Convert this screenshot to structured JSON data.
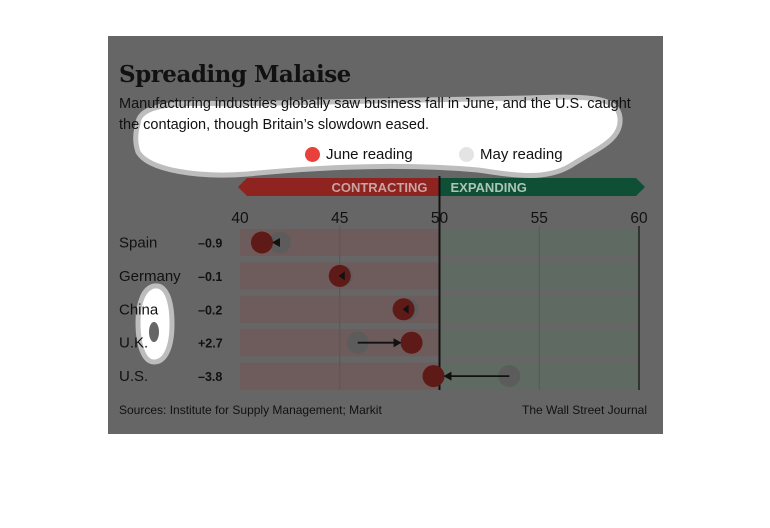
{
  "title": "Spreading Malaise",
  "subtitle": "Manufacturing industries globally saw business fall in June, and the U.S. caught the contagion, though Britain’s slowdown eased.",
  "legend": {
    "june": {
      "label": "June reading",
      "color": "#e8403a"
    },
    "may": {
      "label": "May reading",
      "color": "#e4e4e4"
    }
  },
  "zones": {
    "contracting": "CONTRACTING",
    "expanding": "EXPANDING"
  },
  "footer": {
    "source": "Sources: Institute for Supply Management; Markit",
    "credit": "The Wall Street Journal"
  },
  "colors": {
    "card_background": "#666666",
    "contracting_band": "#8e2320",
    "expanding_band": "#0f4f35",
    "contracting_row": "#6e5b5b",
    "expanding_row": "#5f6a62",
    "arrow": "#111111"
  },
  "chart_data": {
    "type": "dot",
    "title": "Spreading Malaise",
    "x_ticks": [
      40,
      45,
      50,
      55,
      60
    ],
    "xlim": [
      40,
      60
    ],
    "threshold": 50,
    "categories": [
      "Spain",
      "Germany",
      "China",
      "U.K.",
      "U.S."
    ],
    "change_labels": [
      "–0.9",
      "–0.1",
      "–0.2",
      "+2.7",
      "–3.8"
    ],
    "series": [
      {
        "name": "June reading",
        "values": [
          41.1,
          45.0,
          48.2,
          48.6,
          49.7
        ]
      },
      {
        "name": "May reading",
        "values": [
          42.0,
          45.1,
          48.4,
          45.9,
          53.5
        ]
      }
    ],
    "grid": true
  }
}
